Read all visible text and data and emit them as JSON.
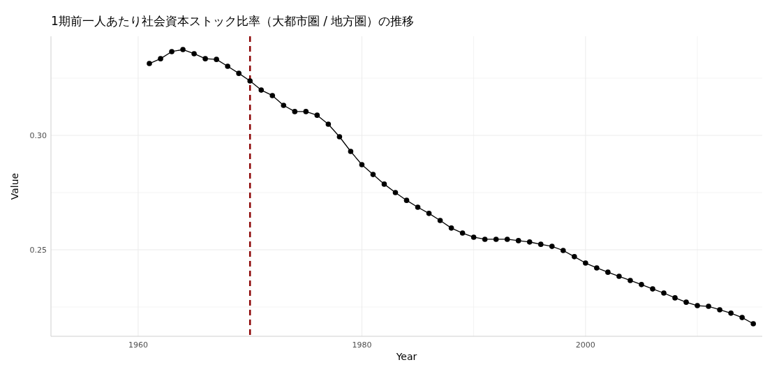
{
  "chart_data": {
    "type": "line",
    "title": "1期前一人あたり社会資本ストック比率（大都市圏 / 地方圏）の推移",
    "xlabel": "Year",
    "ylabel": "Value",
    "x": [
      1961,
      1962,
      1963,
      1964,
      1965,
      1966,
      1967,
      1968,
      1969,
      1970,
      1971,
      1972,
      1973,
      1974,
      1975,
      1976,
      1977,
      1978,
      1979,
      1980,
      1981,
      1982,
      1983,
      1984,
      1985,
      1986,
      1987,
      1988,
      1989,
      1990,
      1991,
      1992,
      1993,
      1994,
      1995,
      1996,
      1997,
      1998,
      1999,
      2000,
      2001,
      2002,
      2003,
      2004,
      2005,
      2006,
      2007,
      2008,
      2009,
      2010,
      2011,
      2012,
      2013,
      2014,
      2015
    ],
    "series": [
      {
        "color": "#000000",
        "values": [
          0.3314,
          0.3335,
          0.3366,
          0.3375,
          0.3357,
          0.3335,
          0.3332,
          0.3302,
          0.3271,
          0.3238,
          0.3198,
          0.3174,
          0.3131,
          0.3104,
          0.3104,
          0.3088,
          0.3049,
          0.2994,
          0.293,
          0.2872,
          0.2829,
          0.2787,
          0.275,
          0.2716,
          0.2686,
          0.2659,
          0.2628,
          0.2595,
          0.2573,
          0.2555,
          0.2546,
          0.2546,
          0.2546,
          0.254,
          0.2534,
          0.2524,
          0.2515,
          0.2497,
          0.247,
          0.2442,
          0.2421,
          0.2402,
          0.2384,
          0.2366,
          0.2348,
          0.2329,
          0.2311,
          0.229,
          0.2271,
          0.2256,
          0.2253,
          0.2238,
          0.2223,
          0.2204,
          0.2177
        ]
      }
    ],
    "xlim": [
      1952.2,
      2015.8
    ],
    "xticks": [
      1960,
      {
        "value": 1970,
        "label": null
      },
      1980,
      {
        "value": 1990,
        "label": null
      },
      2000,
      {
        "value": 2010,
        "label": null
      }
    ],
    "ylim": [
      0.2122,
      0.3433
    ],
    "yticks": [
      {
        "value": 0.225,
        "label": null
      },
      {
        "value": 0.25,
        "label": "0.25"
      },
      {
        "value": 0.275,
        "label": null
      },
      {
        "value": 0.3,
        "label": "0.30"
      },
      {
        "value": 0.325,
        "label": null
      }
    ],
    "grid": true,
    "marker": "circle",
    "line_style": "solid",
    "ref_lines": [
      {
        "axis": "x",
        "value": 1970,
        "color": "#8b0000",
        "line_style": "dashed"
      }
    ]
  }
}
